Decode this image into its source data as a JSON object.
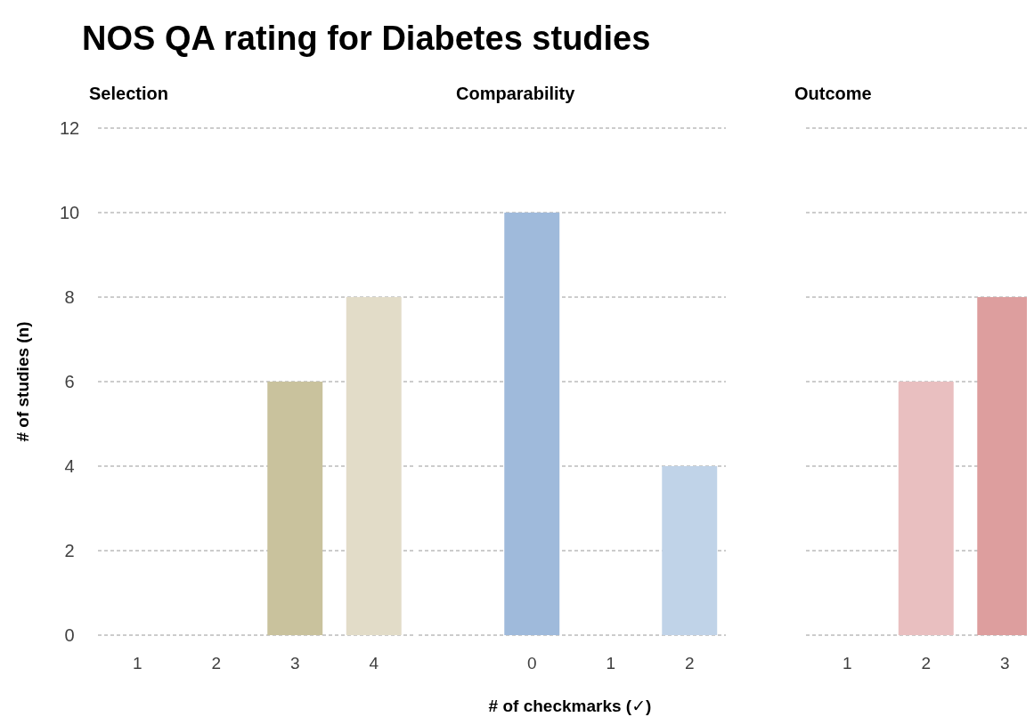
{
  "chart_data": [
    {
      "type": "bar",
      "title": "Selection",
      "annotations": [
        "NOS QA rating for Diabetes studies"
      ],
      "ylabel": "# of studies (n)",
      "categories": [
        "1",
        "2",
        "3",
        "4"
      ],
      "values": [
        0,
        0,
        6,
        8
      ],
      "colors": [
        "#b5ad82",
        "#bdb68f",
        "#c9c29d",
        "#e2dcc8"
      ],
      "ylim": [
        0,
        12
      ],
      "yticks": [
        0,
        2,
        4,
        6,
        8,
        10,
        12
      ],
      "grid": "y"
    },
    {
      "type": "bar",
      "title": "Comparability",
      "xlabel": "# of checkmarks (✓)",
      "categories": [
        "0",
        "1",
        "2"
      ],
      "values": [
        10,
        0,
        4
      ],
      "colors": [
        "#9fbadb",
        "#b0c7e2",
        "#c0d3e8"
      ],
      "ylim": [
        0,
        12
      ],
      "yticks": [
        0,
        2,
        4,
        6,
        8,
        10,
        12
      ],
      "grid": "y",
      "tick_labels": "x"
    },
    {
      "type": "bar",
      "title": "Outcome",
      "categories": [
        "1",
        "2",
        "3"
      ],
      "values": [
        0,
        6,
        8
      ],
      "colors": [
        "#f0d2d2",
        "#e9bfc0",
        "#dd9e9e"
      ],
      "ylim": [
        0,
        12
      ],
      "yticks": [
        0,
        2,
        4,
        6,
        8,
        10,
        12
      ],
      "grid": "y",
      "tick_labels": "x"
    }
  ]
}
